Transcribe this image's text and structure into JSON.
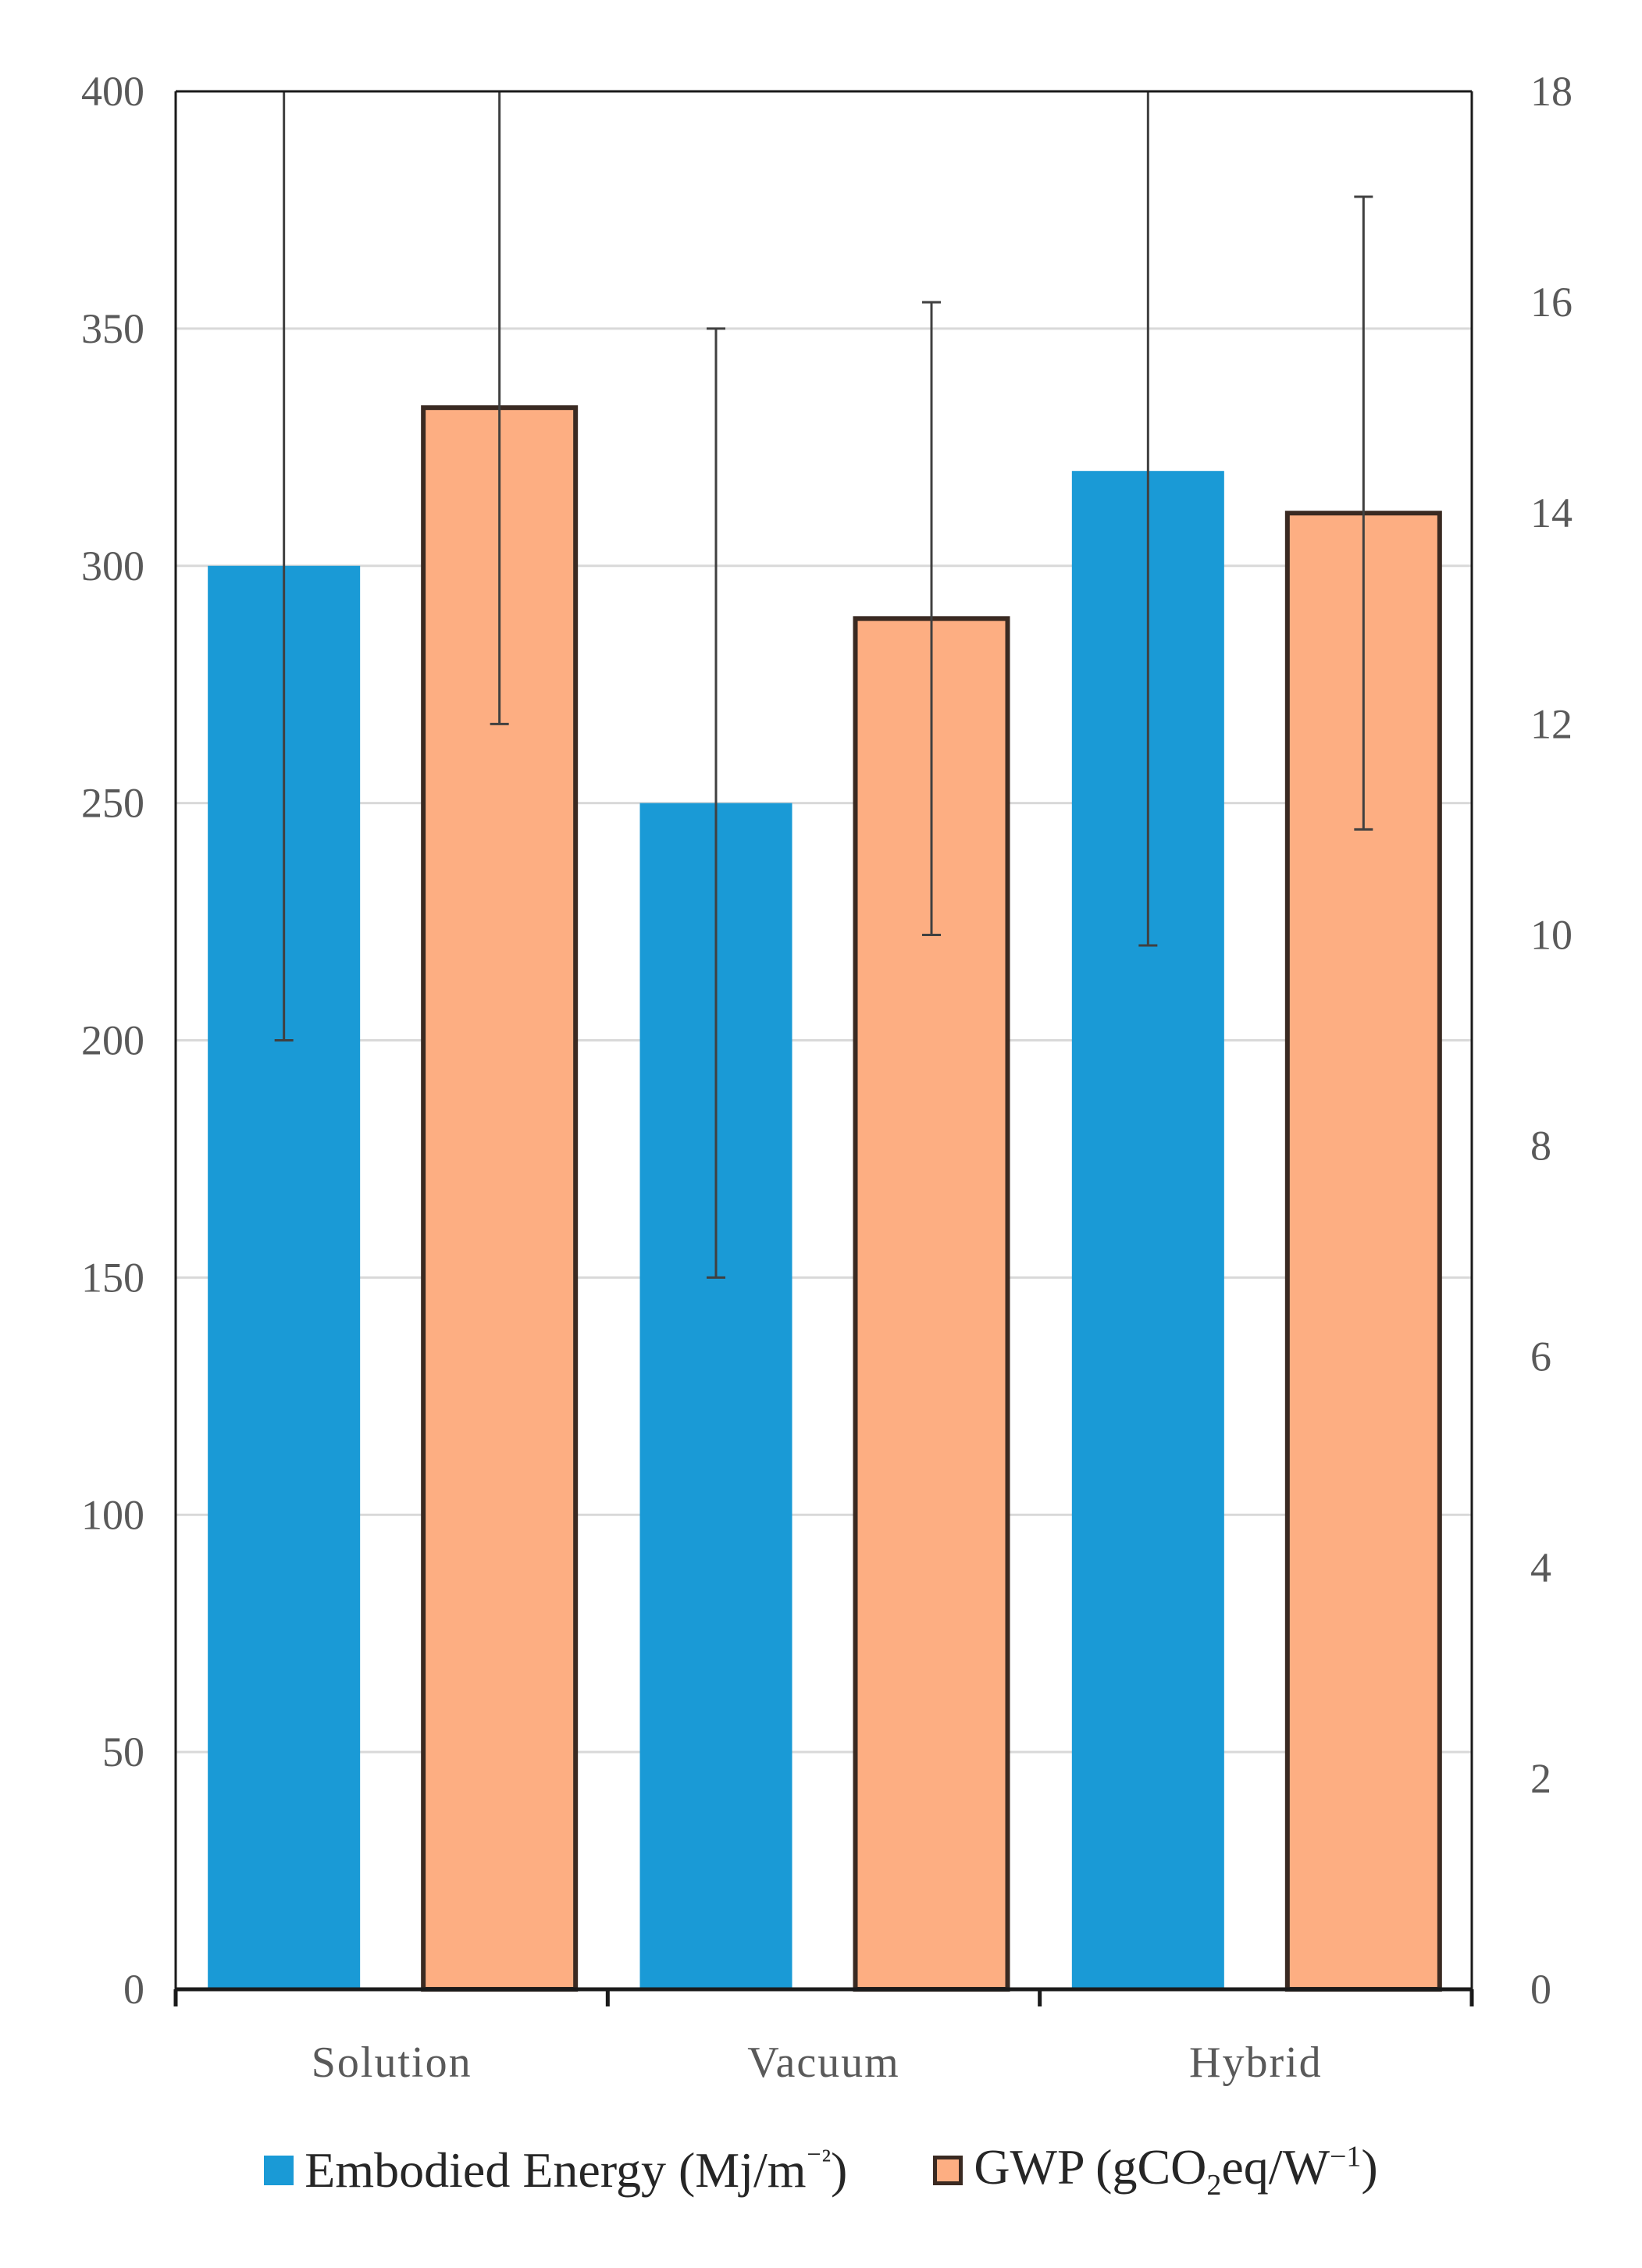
{
  "chart_data": {
    "type": "bar",
    "categories": [
      "Solution",
      "Vacuum",
      "Hybrid"
    ],
    "series": [
      {
        "name": "Embodied Energy (Mj/m⁻²)",
        "axis": "left",
        "color": "#1a9ad6",
        "values": [
          300,
          250,
          320
        ],
        "error_low": [
          200,
          150,
          220
        ],
        "error_high": [
          400,
          350,
          400
        ]
      },
      {
        "name": "GWP (gCO₂eq/W⁻¹)",
        "axis": "right",
        "color": "#fdae82",
        "border_color": "#3a2a22",
        "values": [
          15,
          13,
          14
        ],
        "error_low": [
          12,
          10,
          11
        ],
        "error_high": [
          18,
          16,
          17
        ]
      }
    ],
    "y_left": {
      "lim": [
        0,
        400
      ],
      "ticks": [
        0,
        50,
        100,
        150,
        200,
        250,
        300,
        350,
        400
      ]
    },
    "y_right": {
      "lim": [
        0,
        18
      ],
      "ticks": [
        0,
        2,
        4,
        6,
        8,
        10,
        12,
        14,
        16,
        18
      ]
    },
    "grid": true,
    "legend_position": "bottom",
    "title": "",
    "xlabel": "",
    "ylabel": ""
  },
  "legend": {
    "energy_text": "Embodied Energy (Mj/m",
    "energy_sup": "⁻²",
    "energy_close": ")",
    "gwp_text_a": "GWP (gCO",
    "gwp_sub": "2",
    "gwp_text_b": "eq/W",
    "gwp_sup": "−1",
    "gwp_close": ")"
  }
}
